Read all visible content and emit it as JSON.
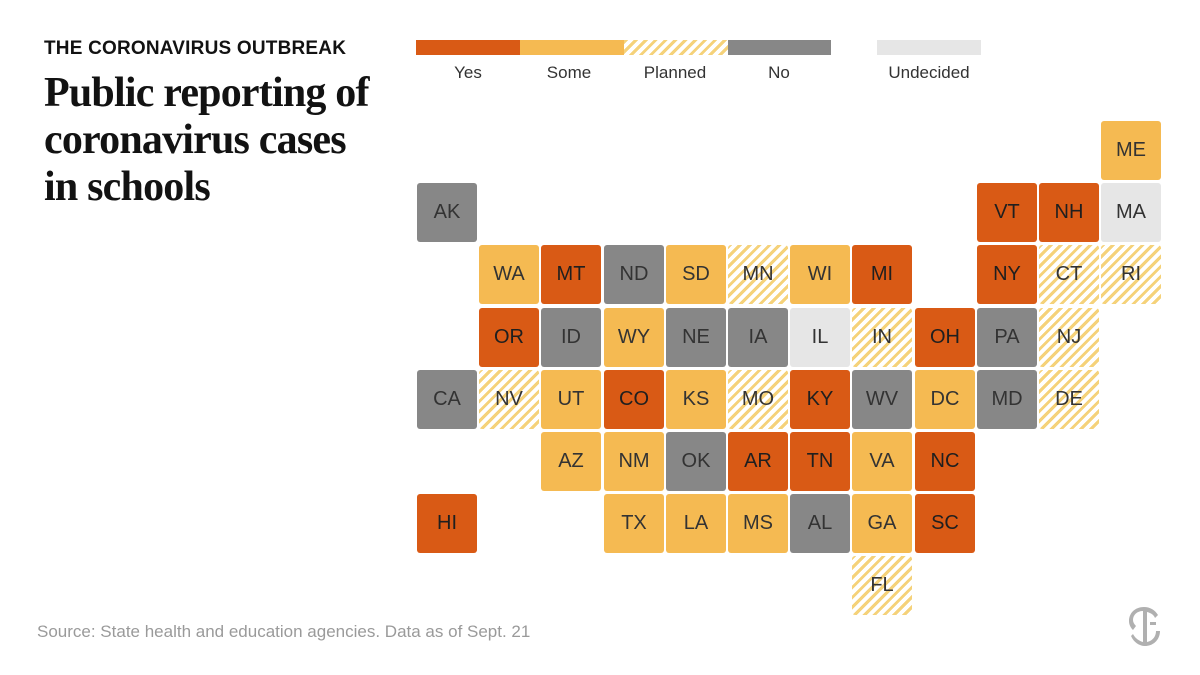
{
  "header": {
    "kicker": "THE CORONAVIRUS OUTBREAK",
    "headline": "Public reporting of coronavirus cases in schools"
  },
  "colors": {
    "yes": "#D95A15",
    "some": "#F5BA52",
    "planned_stripe": "#F5D27A",
    "no": "#878787",
    "undecided": "#E6E6E6"
  },
  "legend": [
    {
      "key": "yes",
      "label": "Yes"
    },
    {
      "key": "some",
      "label": "Some"
    },
    {
      "key": "planned",
      "label": "Planned"
    },
    {
      "key": "no",
      "label": "No"
    },
    {
      "key": "undecided",
      "label": "Undecided"
    }
  ],
  "states": [
    {
      "abbr": "ME",
      "row": 0,
      "col": 11,
      "status": "some"
    },
    {
      "abbr": "AK",
      "row": 1,
      "col": 0,
      "status": "no"
    },
    {
      "abbr": "VT",
      "row": 1,
      "col": 9,
      "status": "yes"
    },
    {
      "abbr": "NH",
      "row": 1,
      "col": 10,
      "status": "yes"
    },
    {
      "abbr": "MA",
      "row": 1,
      "col": 11,
      "status": "undecided"
    },
    {
      "abbr": "WA",
      "row": 2,
      "col": 1,
      "status": "some"
    },
    {
      "abbr": "MT",
      "row": 2,
      "col": 2,
      "status": "yes"
    },
    {
      "abbr": "ND",
      "row": 2,
      "col": 3,
      "status": "no"
    },
    {
      "abbr": "SD",
      "row": 2,
      "col": 4,
      "status": "some"
    },
    {
      "abbr": "MN",
      "row": 2,
      "col": 5,
      "status": "planned"
    },
    {
      "abbr": "WI",
      "row": 2,
      "col": 6,
      "status": "some"
    },
    {
      "abbr": "MI",
      "row": 2,
      "col": 7,
      "status": "yes"
    },
    {
      "abbr": "NY",
      "row": 2,
      "col": 9,
      "status": "yes"
    },
    {
      "abbr": "CT",
      "row": 2,
      "col": 10,
      "status": "planned"
    },
    {
      "abbr": "RI",
      "row": 2,
      "col": 11,
      "status": "planned"
    },
    {
      "abbr": "OR",
      "row": 3,
      "col": 1,
      "status": "yes"
    },
    {
      "abbr": "ID",
      "row": 3,
      "col": 2,
      "status": "no"
    },
    {
      "abbr": "WY",
      "row": 3,
      "col": 3,
      "status": "some"
    },
    {
      "abbr": "NE",
      "row": 3,
      "col": 4,
      "status": "no"
    },
    {
      "abbr": "IA",
      "row": 3,
      "col": 5,
      "status": "no"
    },
    {
      "abbr": "IL",
      "row": 3,
      "col": 6,
      "status": "undecided"
    },
    {
      "abbr": "IN",
      "row": 3,
      "col": 7,
      "status": "planned"
    },
    {
      "abbr": "OH",
      "row": 3,
      "col": 8,
      "status": "yes"
    },
    {
      "abbr": "PA",
      "row": 3,
      "col": 9,
      "status": "no"
    },
    {
      "abbr": "NJ",
      "row": 3,
      "col": 10,
      "status": "planned"
    },
    {
      "abbr": "CA",
      "row": 4,
      "col": 0,
      "status": "no"
    },
    {
      "abbr": "NV",
      "row": 4,
      "col": 1,
      "status": "planned"
    },
    {
      "abbr": "UT",
      "row": 4,
      "col": 2,
      "status": "some"
    },
    {
      "abbr": "CO",
      "row": 4,
      "col": 3,
      "status": "yes"
    },
    {
      "abbr": "KS",
      "row": 4,
      "col": 4,
      "status": "some"
    },
    {
      "abbr": "MO",
      "row": 4,
      "col": 5,
      "status": "planned"
    },
    {
      "abbr": "KY",
      "row": 4,
      "col": 6,
      "status": "yes"
    },
    {
      "abbr": "WV",
      "row": 4,
      "col": 7,
      "status": "no"
    },
    {
      "abbr": "DC",
      "row": 4,
      "col": 8,
      "status": "some"
    },
    {
      "abbr": "MD",
      "row": 4,
      "col": 9,
      "status": "no"
    },
    {
      "abbr": "DE",
      "row": 4,
      "col": 10,
      "status": "planned"
    },
    {
      "abbr": "AZ",
      "row": 5,
      "col": 2,
      "status": "some"
    },
    {
      "abbr": "NM",
      "row": 5,
      "col": 3,
      "status": "some"
    },
    {
      "abbr": "OK",
      "row": 5,
      "col": 4,
      "status": "no"
    },
    {
      "abbr": "AR",
      "row": 5,
      "col": 5,
      "status": "yes"
    },
    {
      "abbr": "TN",
      "row": 5,
      "col": 6,
      "status": "yes"
    },
    {
      "abbr": "VA",
      "row": 5,
      "col": 7,
      "status": "some"
    },
    {
      "abbr": "NC",
      "row": 5,
      "col": 8,
      "status": "yes"
    },
    {
      "abbr": "HI",
      "row": 6,
      "col": 0,
      "status": "yes"
    },
    {
      "abbr": "TX",
      "row": 6,
      "col": 3,
      "status": "some"
    },
    {
      "abbr": "LA",
      "row": 6,
      "col": 4,
      "status": "some"
    },
    {
      "abbr": "MS",
      "row": 6,
      "col": 5,
      "status": "some"
    },
    {
      "abbr": "AL",
      "row": 6,
      "col": 6,
      "status": "no"
    },
    {
      "abbr": "GA",
      "row": 6,
      "col": 7,
      "status": "some"
    },
    {
      "abbr": "SC",
      "row": 6,
      "col": 8,
      "status": "yes"
    },
    {
      "abbr": "FL",
      "row": 7,
      "col": 7,
      "status": "planned"
    }
  ],
  "footer": {
    "source": "Source: State health and education agencies. Data as of Sept. 21",
    "logo_icon": "nyt-t-logo-icon"
  }
}
